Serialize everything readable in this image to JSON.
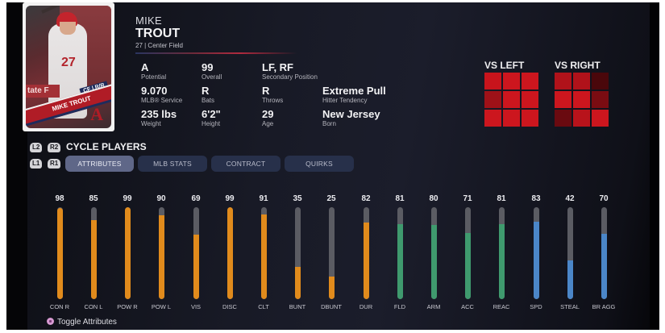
{
  "player": {
    "first_name": "MIKE",
    "last_name": "TROUT",
    "subtitle": "27 | Center Field",
    "card": {
      "banner_name": "MIKE TROUT",
      "position_tag": "CF | R/R",
      "jersey_number": "27",
      "team_logo": "A",
      "ad_text": "tate F"
    }
  },
  "info": [
    {
      "value": "A",
      "label": "Potential"
    },
    {
      "value": "99",
      "label": "Overall"
    },
    {
      "value": "LF, RF",
      "label": "Secondary Position"
    },
    {
      "value": "9.070",
      "label": "MLB® Service"
    },
    {
      "value": "R",
      "label": "Bats"
    },
    {
      "value": "R",
      "label": "Throws"
    },
    {
      "value": "Extreme Pull",
      "label": "Hitter Tendency"
    },
    {
      "value": "235 lbs",
      "label": "Weight"
    },
    {
      "value": "6'2\"",
      "label": "Height"
    },
    {
      "value": "29",
      "label": "Age"
    },
    {
      "value": "New Jersey",
      "label": "Born"
    }
  ],
  "hot_zones": {
    "vs_left": {
      "title": "VS LEFT",
      "cells": [
        "#c8141c",
        "#cc161e",
        "#cc161e",
        "#9e1118",
        "#cc161e",
        "#cc161e",
        "#cc161e",
        "#cc161e",
        "#cc161e"
      ]
    },
    "vs_right": {
      "title": "VS RIGHT",
      "cells": [
        "#b0121a",
        "#b0121a",
        "#4a070b",
        "#cc161e",
        "#cc161e",
        "#7a0c12",
        "#6a0a10",
        "#b8131b",
        "#cc161e"
      ]
    }
  },
  "cycle": {
    "buttons": {
      "l2": "L2",
      "r2": "R2",
      "l1": "L1",
      "r1": "R1"
    },
    "label": "CYCLE PLAYERS"
  },
  "tabs": [
    {
      "label": "ATTRIBUTES",
      "active": true
    },
    {
      "label": "MLB STATS",
      "active": false
    },
    {
      "label": "CONTRACT",
      "active": false
    },
    {
      "label": "QUIRKS",
      "active": false
    }
  ],
  "colors": {
    "hitting": "#e18b1c",
    "fielding": "#3f9a6e",
    "running": "#4b86c8",
    "track": "#5b5c63"
  },
  "attributes": [
    {
      "label": "CON R",
      "value": 98,
      "group": "hitting"
    },
    {
      "label": "CON L",
      "value": 85,
      "group": "hitting"
    },
    {
      "label": "POW R",
      "value": 99,
      "group": "hitting"
    },
    {
      "label": "POW L",
      "value": 90,
      "group": "hitting"
    },
    {
      "label": "VIS",
      "value": 69,
      "group": "hitting"
    },
    {
      "label": "DISC",
      "value": 99,
      "group": "hitting"
    },
    {
      "label": "CLT",
      "value": 91,
      "group": "hitting"
    },
    {
      "label": "BUNT",
      "value": 35,
      "group": "hitting"
    },
    {
      "label": "DBUNT",
      "value": 25,
      "group": "hitting"
    },
    {
      "label": "DUR",
      "value": 82,
      "group": "hitting"
    },
    {
      "label": "FLD",
      "value": 81,
      "group": "fielding"
    },
    {
      "label": "ARM",
      "value": 80,
      "group": "fielding"
    },
    {
      "label": "ACC",
      "value": 71,
      "group": "fielding"
    },
    {
      "label": "REAC",
      "value": 81,
      "group": "fielding"
    },
    {
      "label": "SPD",
      "value": 83,
      "group": "running"
    },
    {
      "label": "STEAL",
      "value": 42,
      "group": "running"
    },
    {
      "label": "BR AGG",
      "value": 70,
      "group": "running"
    }
  ],
  "footer": {
    "toggle_label": "Toggle Attributes"
  },
  "chart_data": {
    "type": "bar",
    "title": "ATTRIBUTES",
    "categories": [
      "CON R",
      "CON L",
      "POW R",
      "POW L",
      "VIS",
      "DISC",
      "CLT",
      "BUNT",
      "DBUNT",
      "DUR",
      "FLD",
      "ARM",
      "ACC",
      "REAC",
      "SPD",
      "STEAL",
      "BR AGG"
    ],
    "values": [
      98,
      85,
      99,
      90,
      69,
      99,
      91,
      35,
      25,
      82,
      81,
      80,
      71,
      81,
      83,
      42,
      70
    ],
    "ylim": [
      0,
      99
    ],
    "groups": {
      "hitting": "orange",
      "fielding": "green",
      "running": "blue"
    },
    "grid": false,
    "orientation": "vertical"
  }
}
